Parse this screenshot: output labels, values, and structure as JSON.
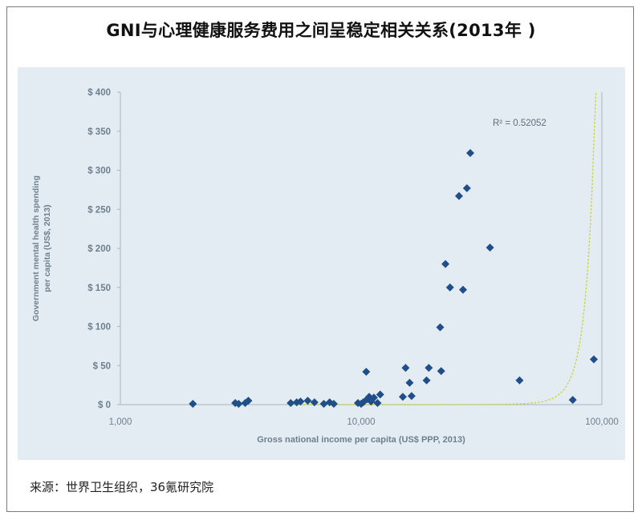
{
  "title": "GNI与心理健康服务费用之间呈稳定相关关系(2013年 )",
  "source": "来源：世界卫生组织，36氪研究院",
  "colors": {
    "plot_bg": "#e4ecf3",
    "marker": "#1f4e89",
    "trend": "#c8d633",
    "axis_text": "#6d7f8e",
    "frame": "#7a7a7a"
  },
  "chart_data": {
    "type": "scatter",
    "title": "",
    "xlabel": "Gross national income per capita (US$  PPP, 2013)",
    "ylabel_line1": "Government mental health spending",
    "ylabel_line2": "per capita (US$, 2013)",
    "x_scale": "log",
    "xlim": [
      1000,
      100000
    ],
    "ylim": [
      0,
      400
    ],
    "x_ticks": [
      1000,
      10000,
      100000
    ],
    "x_tick_labels": [
      "1,000",
      "10,000",
      "100,000"
    ],
    "y_ticks": [
      0,
      50,
      100,
      150,
      200,
      250,
      300,
      350,
      400
    ],
    "y_tick_labels": [
      "$ 0",
      "$ 50",
      "$ 100",
      "$ 150",
      "$ 200",
      "$ 250",
      "$ 300",
      "$ 350",
      "$ 400"
    ],
    "grid": false,
    "annotation": "R² = 0.52052",
    "trendline": {
      "type": "exponential",
      "a": 0.00345,
      "b": 0.000124,
      "x_start": 5000
    },
    "points": [
      [
        2000,
        1
      ],
      [
        3000,
        2
      ],
      [
        3100,
        1
      ],
      [
        3300,
        2
      ],
      [
        3400,
        5
      ],
      [
        5100,
        2
      ],
      [
        5400,
        3
      ],
      [
        5600,
        4
      ],
      [
        6000,
        5
      ],
      [
        6400,
        3
      ],
      [
        7000,
        1
      ],
      [
        7400,
        3
      ],
      [
        7700,
        1
      ],
      [
        9700,
        2
      ],
      [
        10000,
        1
      ],
      [
        10200,
        3
      ],
      [
        10500,
        42
      ],
      [
        10600,
        7
      ],
      [
        10800,
        10
      ],
      [
        11000,
        4
      ],
      [
        11300,
        9
      ],
      [
        11700,
        2
      ],
      [
        12000,
        13
      ],
      [
        14900,
        10
      ],
      [
        15300,
        47
      ],
      [
        15900,
        28
      ],
      [
        16200,
        11
      ],
      [
        18700,
        31
      ],
      [
        19100,
        47
      ],
      [
        21300,
        99
      ],
      [
        21500,
        43
      ],
      [
        22400,
        180
      ],
      [
        23400,
        150
      ],
      [
        25500,
        267
      ],
      [
        26500,
        147
      ],
      [
        27500,
        277
      ],
      [
        28400,
        322
      ],
      [
        34300,
        201
      ],
      [
        45500,
        31
      ],
      [
        75700,
        6
      ],
      [
        92600,
        58
      ]
    ]
  }
}
